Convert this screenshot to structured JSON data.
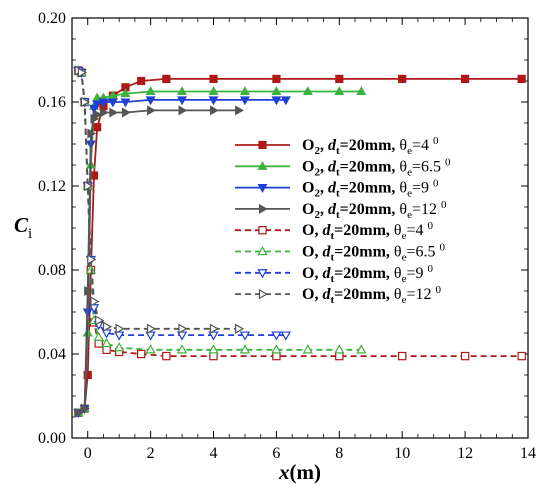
{
  "chart_data": {
    "type": "line",
    "xlabel": "x",
    "xlabel_unit": "(m)",
    "ylabel": "C",
    "ylabel_sub": "i",
    "xlim": [
      -0.5,
      14
    ],
    "ylim": [
      0,
      0.2
    ],
    "x_ticks": [
      0,
      2,
      4,
      6,
      8,
      10,
      12,
      14
    ],
    "y_ticks": [
      0.0,
      0.04,
      0.08,
      0.12,
      0.16,
      0.2
    ],
    "x_tick_labels": [
      "0",
      "2",
      "4",
      "6",
      "8",
      "10",
      "12",
      "14"
    ],
    "y_tick_labels": [
      "0.00",
      "0.04",
      "0.08",
      "0.12",
      "0.16",
      "0.20"
    ],
    "grid": false,
    "legend_position": "right",
    "series": [
      {
        "species": "O",
        "species_sub": "2",
        "dt": "=20mm,",
        "theta_sub": "e",
        "theta_val": "=4",
        "theta_sup": "0",
        "color": "#b01818",
        "dash": false,
        "marker": "square-filled",
        "x": [
          -0.3,
          -0.1,
          0.0,
          0.1,
          0.2,
          0.3,
          0.5,
          0.8,
          1.2,
          1.7,
          2.5,
          4,
          6,
          8,
          10,
          12,
          13.8
        ],
        "y": [
          0.012,
          0.014,
          0.03,
          0.08,
          0.125,
          0.148,
          0.158,
          0.163,
          0.167,
          0.17,
          0.171,
          0.171,
          0.171,
          0.171,
          0.171,
          0.171,
          0.171
        ]
      },
      {
        "species": "O",
        "species_sub": "2",
        "dt": "=20mm,",
        "theta_sub": "e",
        "theta_val": "=6.5",
        "theta_sup": "0",
        "color": "#3cb33c",
        "dash": false,
        "marker": "triangle-up-filled",
        "x": [
          -0.3,
          -0.1,
          0.0,
          0.1,
          0.2,
          0.3,
          0.5,
          0.8,
          1.2,
          2,
          3,
          4,
          5,
          6,
          7,
          8,
          8.7
        ],
        "y": [
          0.012,
          0.014,
          0.05,
          0.13,
          0.158,
          0.162,
          0.162,
          0.163,
          0.164,
          0.165,
          0.165,
          0.165,
          0.165,
          0.165,
          0.165,
          0.165,
          0.165
        ]
      },
      {
        "species": "O",
        "species_sub": "2",
        "dt": "=20mm,",
        "theta_sub": "e",
        "theta_val": "=9",
        "theta_sup": "0",
        "color": "#1f3fd8",
        "dash": false,
        "marker": "triangle-down-filled",
        "x": [
          -0.3,
          -0.1,
          0.0,
          0.1,
          0.2,
          0.3,
          0.5,
          0.8,
          1.2,
          2,
          3,
          4,
          5,
          6,
          6.3
        ],
        "y": [
          0.012,
          0.014,
          0.06,
          0.14,
          0.157,
          0.159,
          0.16,
          0.16,
          0.16,
          0.161,
          0.161,
          0.161,
          0.161,
          0.161,
          0.161
        ]
      },
      {
        "species": "O",
        "species_sub": "2",
        "dt": "=20mm,",
        "theta_sub": "e",
        "theta_val": "=12",
        "theta_sup": "0",
        "color": "#555555",
        "dash": false,
        "marker": "triangle-right-filled",
        "x": [
          -0.3,
          -0.1,
          0.0,
          0.1,
          0.2,
          0.3,
          0.5,
          0.8,
          1.2,
          2,
          3,
          4,
          4.8
        ],
        "y": [
          0.012,
          0.014,
          0.07,
          0.145,
          0.152,
          0.154,
          0.155,
          0.155,
          0.155,
          0.156,
          0.156,
          0.156,
          0.156
        ]
      },
      {
        "species": "O",
        "species_sub": "",
        "dt": "=20mm,",
        "theta_sub": "e",
        "theta_val": "=4",
        "theta_sup": "0",
        "color": "#b01818",
        "dash": true,
        "marker": "square-open",
        "x": [
          -0.3,
          -0.2,
          -0.1,
          0.0,
          0.1,
          0.2,
          0.35,
          0.6,
          1.0,
          1.7,
          2.5,
          4,
          6,
          8,
          10,
          12,
          13.8
        ],
        "y": [
          0.175,
          0.174,
          0.16,
          0.12,
          0.08,
          0.055,
          0.045,
          0.042,
          0.041,
          0.04,
          0.039,
          0.039,
          0.039,
          0.039,
          0.039,
          0.039,
          0.039
        ]
      },
      {
        "species": "O",
        "species_sub": "",
        "dt": "=20mm,",
        "theta_sub": "e",
        "theta_val": "=6.5",
        "theta_sup": "0",
        "color": "#3cb33c",
        "dash": true,
        "marker": "triangle-up-open",
        "x": [
          -0.3,
          -0.2,
          -0.1,
          0.0,
          0.1,
          0.2,
          0.35,
          0.6,
          1.0,
          2,
          3,
          4,
          5,
          6,
          7,
          8,
          8.7
        ],
        "y": [
          0.175,
          0.174,
          0.16,
          0.12,
          0.08,
          0.056,
          0.048,
          0.045,
          0.043,
          0.042,
          0.042,
          0.042,
          0.042,
          0.042,
          0.042,
          0.042,
          0.042
        ]
      },
      {
        "species": "O",
        "species_sub": "",
        "dt": "=20mm,",
        "theta_sub": "e",
        "theta_val": "=9",
        "theta_sup": "0",
        "color": "#1f3fd8",
        "dash": true,
        "marker": "triangle-down-open",
        "x": [
          -0.3,
          -0.2,
          -0.1,
          0.0,
          0.1,
          0.2,
          0.35,
          0.6,
          1.0,
          2,
          3,
          4,
          5,
          6,
          6.3
        ],
        "y": [
          0.175,
          0.174,
          0.16,
          0.12,
          0.085,
          0.062,
          0.054,
          0.05,
          0.049,
          0.049,
          0.049,
          0.049,
          0.049,
          0.049,
          0.049
        ]
      },
      {
        "species": "O",
        "species_sub": "",
        "dt": "=20mm,",
        "theta_sub": "e",
        "theta_val": "=12",
        "theta_sup": "0",
        "color": "#555555",
        "dash": true,
        "marker": "triangle-right-open",
        "x": [
          -0.3,
          -0.2,
          -0.1,
          0.0,
          0.1,
          0.2,
          0.35,
          0.6,
          1.0,
          2,
          3,
          4,
          4.8
        ],
        "y": [
          0.175,
          0.174,
          0.16,
          0.12,
          0.085,
          0.065,
          0.056,
          0.053,
          0.052,
          0.052,
          0.052,
          0.052,
          0.052
        ]
      }
    ]
  }
}
